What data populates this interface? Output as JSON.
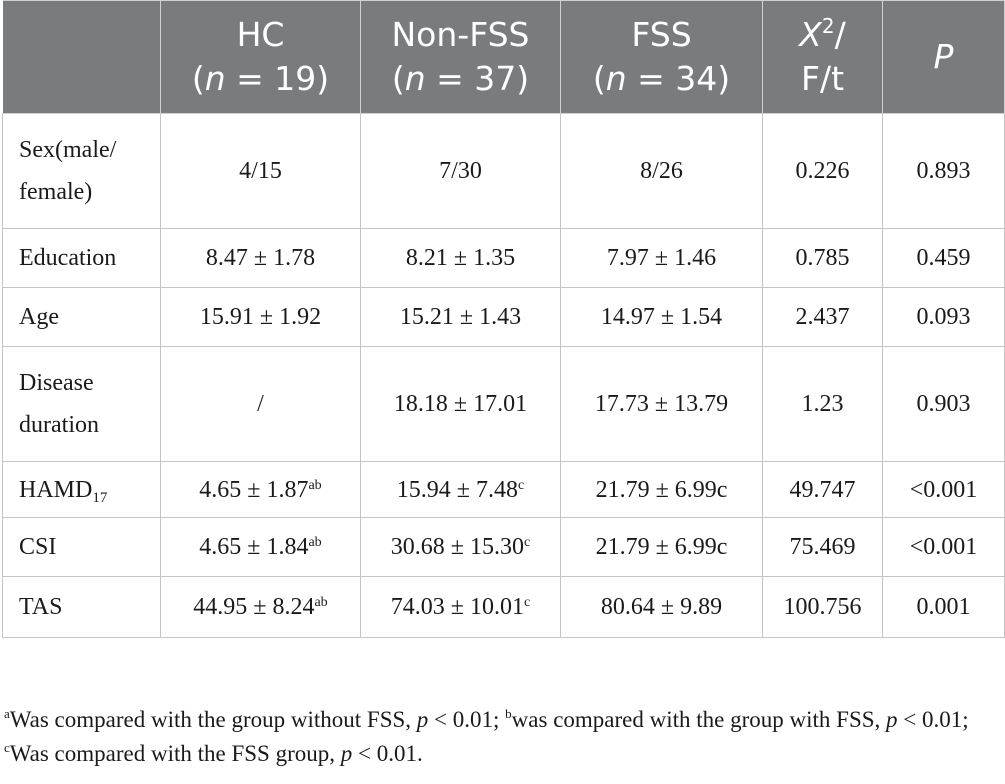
{
  "table": {
    "headers": [
      {
        "line1": "",
        "line2": ""
      },
      {
        "line1": "HC",
        "n_prefix": "(",
        "n_var": "n",
        "n_rest": " = 19)"
      },
      {
        "line1": "Non-FSS",
        "n_prefix": "(",
        "n_var": "n",
        "n_rest": " = 37)"
      },
      {
        "line1": "FSS",
        "n_prefix": "(",
        "n_var": "n",
        "n_rest": " = 34)"
      },
      {
        "x": "X",
        "sup": "2",
        "slash": "/",
        "line2": "F/t"
      },
      {
        "p": "P"
      }
    ],
    "rows": {
      "sex": {
        "label1": "Sex(male/",
        "label2": "female)",
        "hc": "4/15",
        "non": "7/30",
        "fss": "8/26",
        "stat": "0.226",
        "p": "0.893"
      },
      "education": {
        "label": "Education",
        "hc": "8.47 ± 1.78",
        "non": "8.21 ± 1.35",
        "fss": "7.97 ± 1.46",
        "stat": "0.785",
        "p": "0.459"
      },
      "age": {
        "label": "Age",
        "hc": "15.91 ± 1.92",
        "non": "15.21 ± 1.43",
        "fss": "14.97 ± 1.54",
        "stat": "2.437",
        "p": "0.093"
      },
      "duration": {
        "label1": "Disease",
        "label2": "duration",
        "hc": "/",
        "non": "18.18 ± 17.01",
        "fss": "17.73 ± 13.79",
        "stat": "1.23",
        "p": "0.903"
      },
      "hamd": {
        "label": "HAMD",
        "label_sub": "17",
        "hc": "4.65 ± 1.87",
        "hc_sup": "ab",
        "non": "15.94 ± 7.48",
        "non_sup": "c",
        "fss": "21.79 ± 6.99c",
        "stat": "49.747",
        "p": "<0.001"
      },
      "csi": {
        "label": "CSI",
        "hc": "4.65 ± 1.84",
        "hc_sup": "ab",
        "non": "30.68 ± 15.30",
        "non_sup": "c",
        "fss": "21.79 ± 6.99c",
        "stat": "75.469",
        "p": "<0.001"
      },
      "tas": {
        "label": "TAS",
        "hc": "44.95 ± 8.24",
        "hc_sup": "ab",
        "non": "74.03 ± 10.01",
        "non_sup": "c",
        "fss": "80.64 ± 9.89",
        "stat": "100.756",
        "p": "0.001"
      }
    }
  },
  "footnote": {
    "a_mark": "a",
    "a_text": "Was compared with the group without FSS, ",
    "a_p": "p",
    "a_val": " < 0.01; ",
    "b_mark": "b",
    "b_text": "was compared with the group with FSS, ",
    "b_p": "p",
    "b_val": " < 0.01; ",
    "c_mark": "c",
    "c_text": "Was compared with the FSS group, ",
    "c_p": "p",
    "c_val": " < 0.01."
  }
}
